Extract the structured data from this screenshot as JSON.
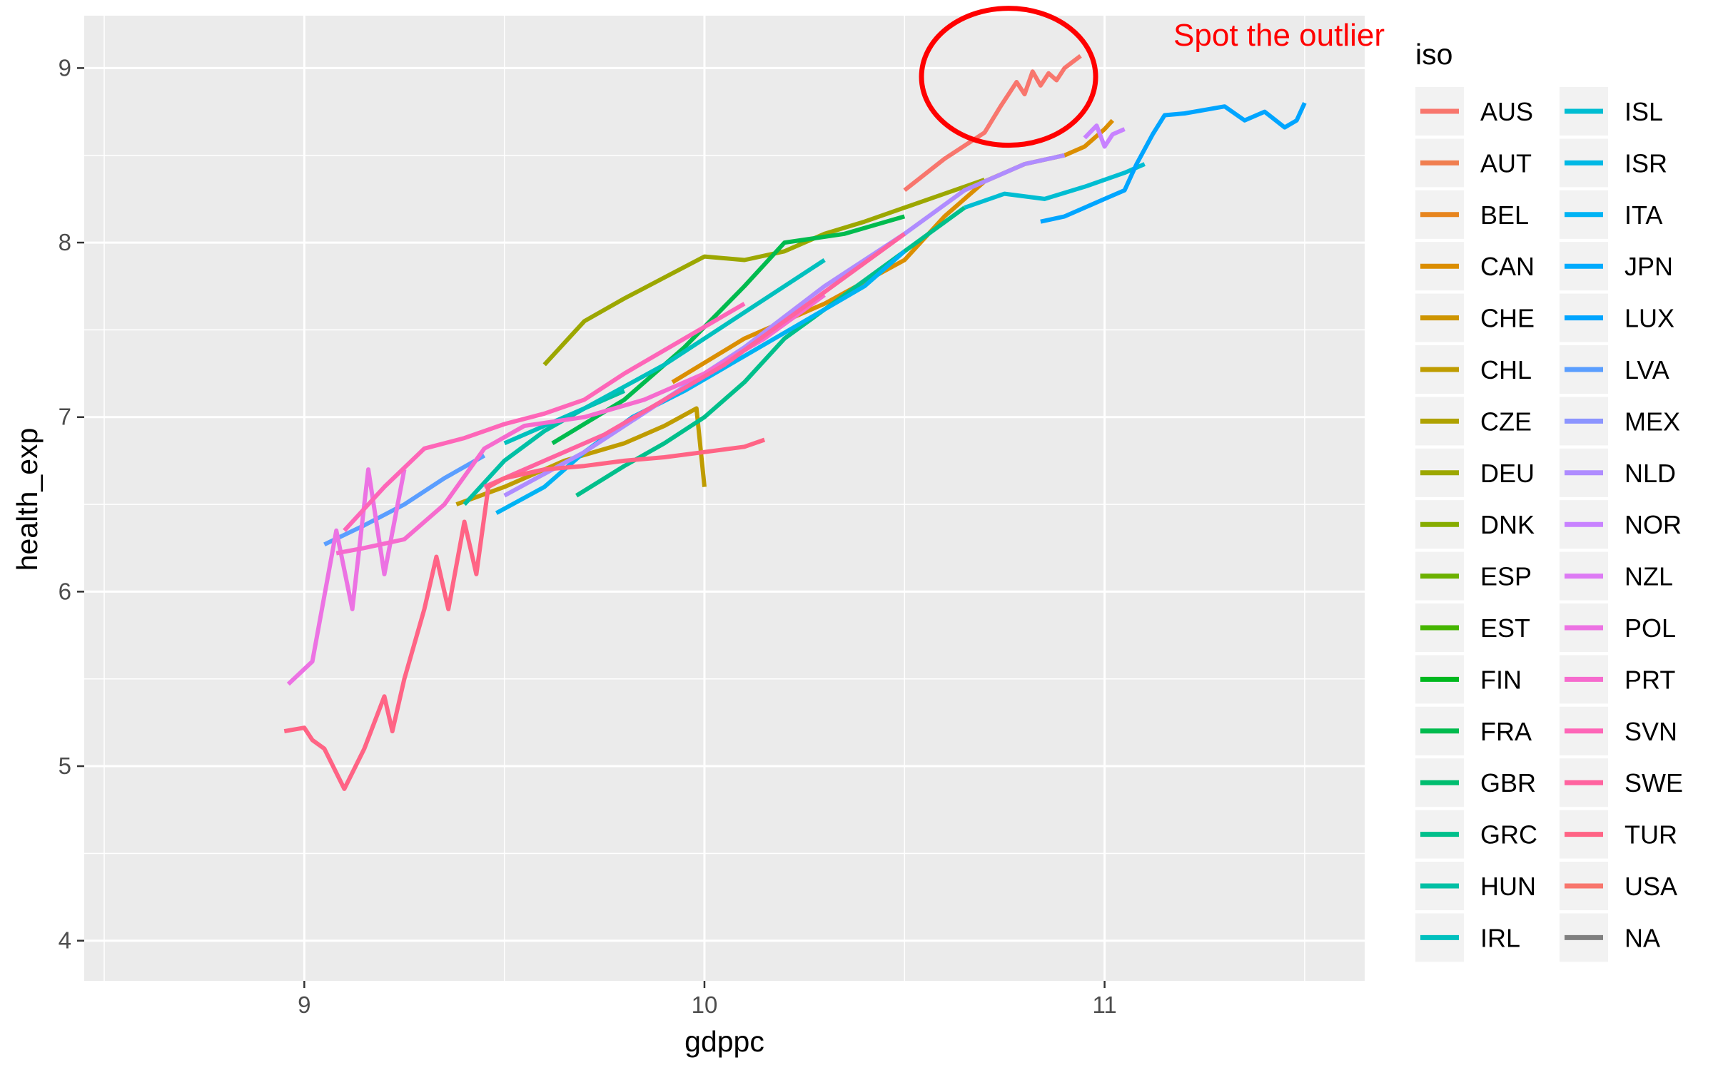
{
  "chart_data": {
    "type": "line",
    "xlabel": "gdppc",
    "ylabel": "health_exp",
    "xlim": [
      8.45,
      11.65
    ],
    "ylim": [
      3.77,
      9.3
    ],
    "x_ticks": [
      9,
      10,
      11
    ],
    "y_ticks": [
      4,
      5,
      6,
      7,
      8,
      9
    ],
    "grid": true,
    "legend": {
      "title": "iso",
      "position": "right",
      "columns": 2
    },
    "annotation": {
      "text": "Spot the outlier",
      "color": "#ff0000",
      "highlight": "circle",
      "target_series": "USA",
      "center": [
        10.76,
        8.95
      ]
    },
    "series": [
      {
        "name": "AUS",
        "color": "#F8766D",
        "x": [],
        "y": []
      },
      {
        "name": "AUT",
        "color": "#F07E4F",
        "x": [],
        "y": []
      },
      {
        "name": "BEL",
        "color": "#E7851E",
        "x": [],
        "y": []
      },
      {
        "name": "CAN",
        "color": "#DB8E00",
        "x": [
          9.92,
          10.1,
          10.3,
          10.5,
          10.6,
          10.7,
          10.8,
          10.9,
          10.95,
          11.0,
          11.02
        ],
        "y": [
          7.2,
          7.45,
          7.65,
          7.9,
          8.15,
          8.35,
          8.45,
          8.5,
          8.55,
          8.65,
          8.7
        ]
      },
      {
        "name": "CHE",
        "color": "#CE9500",
        "x": [],
        "y": []
      },
      {
        "name": "CHL",
        "color": "#BF9C00",
        "x": [
          9.38,
          9.5,
          9.65,
          9.8,
          9.9,
          9.98,
          10.0
        ],
        "y": [
          6.5,
          6.6,
          6.75,
          6.85,
          6.95,
          7.05,
          6.6
        ]
      },
      {
        "name": "CZE",
        "color": "#AFA200",
        "x": [],
        "y": []
      },
      {
        "name": "DEU",
        "color": "#9CA700",
        "x": [
          9.6,
          9.7,
          9.8,
          9.9,
          10.0,
          10.1,
          10.2,
          10.3,
          10.4,
          10.5,
          10.6,
          10.7
        ],
        "y": [
          7.3,
          7.55,
          7.68,
          7.8,
          7.92,
          7.9,
          7.95,
          8.05,
          8.12,
          8.2,
          8.28,
          8.36
        ]
      },
      {
        "name": "DNK",
        "color": "#86AC00",
        "x": [],
        "y": []
      },
      {
        "name": "ESP",
        "color": "#6BB100",
        "x": [],
        "y": []
      },
      {
        "name": "EST",
        "color": "#45B500",
        "x": [],
        "y": []
      },
      {
        "name": "FIN",
        "color": "#00B81F",
        "x": [],
        "y": []
      },
      {
        "name": "FRA",
        "color": "#00BB4E",
        "x": [
          9.62,
          9.8,
          9.95,
          10.1,
          10.2,
          10.35,
          10.5
        ],
        "y": [
          6.85,
          7.1,
          7.4,
          7.75,
          8.0,
          8.05,
          8.15
        ]
      },
      {
        "name": "GBR",
        "color": "#00BD6F",
        "x": [],
        "y": []
      },
      {
        "name": "GRC",
        "color": "#00BF8B",
        "x": [
          9.68,
          9.8,
          9.9,
          10.0,
          10.1,
          10.2,
          10.35,
          10.5,
          10.65
        ],
        "y": [
          6.55,
          6.72,
          6.85,
          7.0,
          7.2,
          7.45,
          7.7,
          7.95,
          8.2
        ]
      },
      {
        "name": "HUN",
        "color": "#00C0A5",
        "x": [
          9.4,
          9.5,
          9.6,
          9.7,
          9.8
        ],
        "y": [
          6.5,
          6.75,
          6.92,
          7.05,
          7.15
        ]
      },
      {
        "name": "IRL",
        "color": "#00C0BE",
        "x": [
          9.5,
          9.7,
          9.9,
          10.1,
          10.3
        ],
        "y": [
          6.85,
          7.05,
          7.3,
          7.6,
          7.9
        ]
      },
      {
        "name": "ISL",
        "color": "#00BDD2",
        "x": [
          10.65,
          10.75,
          10.85,
          10.95,
          11.05,
          11.1
        ],
        "y": [
          8.2,
          8.28,
          8.25,
          8.32,
          8.4,
          8.45
        ]
      },
      {
        "name": "ISR",
        "color": "#00B8E5",
        "x": [],
        "y": []
      },
      {
        "name": "ITA",
        "color": "#00B3F4",
        "x": [
          9.48,
          9.6,
          9.7,
          9.82,
          9.95,
          10.1,
          10.25,
          10.4,
          10.5
        ],
        "y": [
          6.45,
          6.6,
          6.8,
          7.0,
          7.15,
          7.35,
          7.55,
          7.75,
          7.95
        ]
      },
      {
        "name": "JPN",
        "color": "#00ABFD",
        "x": [],
        "y": []
      },
      {
        "name": "LUX",
        "color": "#00A5FF",
        "x": [
          10.84,
          10.9,
          10.95,
          11.0,
          11.05,
          11.08,
          11.12,
          11.15,
          11.2,
          11.3,
          11.35,
          11.4,
          11.45,
          11.48,
          11.5
        ],
        "y": [
          8.12,
          8.15,
          8.2,
          8.25,
          8.3,
          8.45,
          8.62,
          8.73,
          8.74,
          8.78,
          8.7,
          8.75,
          8.66,
          8.7,
          8.8
        ]
      },
      {
        "name": "LVA",
        "color": "#5A9EFF",
        "x": [
          9.05,
          9.15,
          9.25,
          9.35,
          9.45
        ],
        "y": [
          6.27,
          6.38,
          6.5,
          6.65,
          6.78
        ]
      },
      {
        "name": "MEX",
        "color": "#8C95FF",
        "x": [],
        "y": []
      },
      {
        "name": "NLD",
        "color": "#AF8CFF",
        "x": [
          9.5,
          9.7,
          9.9,
          10.1,
          10.3,
          10.5,
          10.65,
          10.8,
          10.9
        ],
        "y": [
          6.55,
          6.8,
          7.1,
          7.4,
          7.75,
          8.05,
          8.3,
          8.45,
          8.5
        ]
      },
      {
        "name": "NOR",
        "color": "#C882FF",
        "x": [
          10.95,
          10.98,
          11.0,
          11.02,
          11.05
        ],
        "y": [
          8.6,
          8.67,
          8.55,
          8.62,
          8.65
        ]
      },
      {
        "name": "NZL",
        "color": "#DD7AF4",
        "x": [],
        "y": []
      },
      {
        "name": "POL",
        "color": "#EC72E3",
        "x": [
          8.96,
          9.02,
          9.08,
          9.12,
          9.16,
          9.2,
          9.25
        ],
        "y": [
          5.47,
          5.6,
          6.35,
          5.9,
          6.7,
          6.1,
          6.7
        ]
      },
      {
        "name": "PRT",
        "color": "#F66BCE",
        "x": [
          9.08,
          9.15,
          9.25,
          9.35,
          9.45,
          9.55,
          9.7,
          9.85,
          10.0,
          10.15,
          10.3
        ],
        "y": [
          6.22,
          6.25,
          6.3,
          6.5,
          6.82,
          6.95,
          7.0,
          7.1,
          7.25,
          7.45,
          7.7
        ]
      },
      {
        "name": "SVN",
        "color": "#FE66B8",
        "x": [
          9.1,
          9.2,
          9.3,
          9.4,
          9.5,
          9.6,
          9.7,
          9.8,
          9.95,
          10.1
        ],
        "y": [
          6.35,
          6.6,
          6.82,
          6.88,
          6.96,
          7.02,
          7.1,
          7.25,
          7.45,
          7.65
        ]
      },
      {
        "name": "SWE",
        "color": "#FF639F",
        "x": [
          9.45,
          9.6,
          9.75,
          9.9,
          10.05,
          10.2,
          10.35,
          10.5
        ],
        "y": [
          6.6,
          6.75,
          6.9,
          7.1,
          7.3,
          7.55,
          7.8,
          8.05
        ]
      },
      {
        "name": "TUR",
        "color": "#FF6485",
        "x": [
          8.95,
          9.0,
          9.02,
          9.05,
          9.1,
          9.15,
          9.2,
          9.22,
          9.25,
          9.3,
          9.33,
          9.36,
          9.4,
          9.43,
          9.46,
          9.5,
          9.6,
          9.7,
          9.8,
          9.9,
          10.0,
          10.1,
          10.15
        ],
        "y": [
          5.2,
          5.22,
          5.15,
          5.1,
          4.87,
          5.1,
          5.4,
          5.2,
          5.5,
          5.9,
          6.2,
          5.9,
          6.4,
          6.1,
          6.6,
          6.65,
          6.7,
          6.72,
          6.75,
          6.77,
          6.8,
          6.83,
          6.87
        ]
      },
      {
        "name": "USA",
        "color": "#F8766D",
        "x": [
          10.5,
          10.6,
          10.7,
          10.74,
          10.78,
          10.8,
          10.82,
          10.84,
          10.86,
          10.88,
          10.9,
          10.94
        ],
        "y": [
          8.3,
          8.48,
          8.63,
          8.78,
          8.92,
          8.85,
          8.98,
          8.9,
          8.97,
          8.93,
          9.0,
          9.07
        ]
      },
      {
        "name": "NA",
        "color": "#7F7F7F",
        "x": [],
        "y": []
      }
    ]
  }
}
